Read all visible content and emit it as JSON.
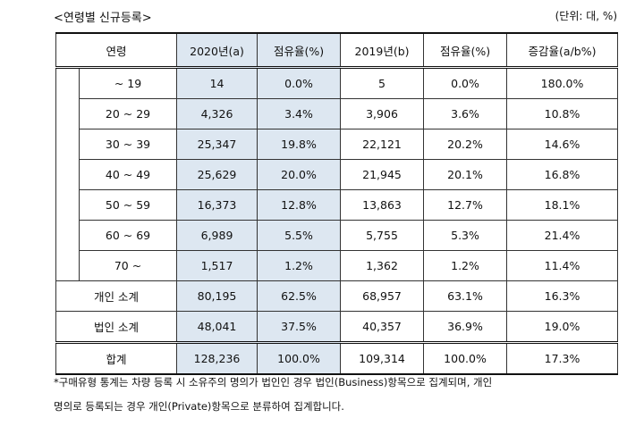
{
  "header": {
    "title": "<연령별 신규등록>",
    "unit": "(단위: 대, %)"
  },
  "table": {
    "columns": [
      "연령",
      "2020년(a)",
      "점유율(%)",
      "2019년(b)",
      "점유율(%)",
      "증감율(a/b%)"
    ],
    "rows": [
      [
        "~ 19",
        "14",
        "0.0%",
        "5",
        "0.0%",
        "180.0%"
      ],
      [
        "20 ~ 29",
        "4,326",
        "3.4%",
        "3,906",
        "3.6%",
        "10.8%"
      ],
      [
        "30 ~ 39",
        "25,347",
        "19.8%",
        "22,121",
        "20.2%",
        "14.6%"
      ],
      [
        "40 ~ 49",
        "25,629",
        "20.0%",
        "21,945",
        "20.1%",
        "16.8%"
      ],
      [
        "50 ~ 59",
        "16,373",
        "12.8%",
        "13,863",
        "12.7%",
        "18.1%"
      ],
      [
        "60 ~ 69",
        "6,989",
        "5.5%",
        "5,755",
        "5.3%",
        "21.4%"
      ],
      [
        "70 ~",
        "1,517",
        "1.2%",
        "1,362",
        "1.2%",
        "11.4%"
      ],
      [
        "개인 소계",
        "80,195",
        "62.5%",
        "68,957",
        "63.1%",
        "16.3%"
      ],
      [
        "법인 소계",
        "48,041",
        "37.5%",
        "40,357",
        "36.9%",
        "19.0%"
      ],
      [
        "합계",
        "128,236",
        "100.0%",
        "109,314",
        "100.0%",
        "17.3%"
      ]
    ]
  },
  "footnote": [
    "*구매유형 통계는 차량 등록 시 소유주의 명의가 법인인 경우 법인(Business)항목으로 집계되며, 개인",
    "명의로 등록되는 경우 개인(Private)항목으로 분류하여 집계합니다."
  ]
}
